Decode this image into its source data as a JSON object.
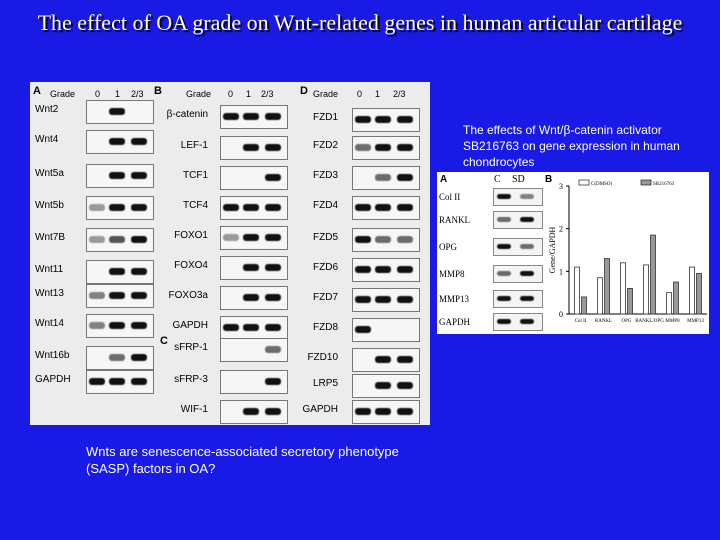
{
  "title": "The effect of OA grade on Wnt-related genes in human articular cartilage",
  "figure1": {
    "panel_A": {
      "letter": "A",
      "header": [
        "Grade",
        "0",
        "1",
        "2/3"
      ],
      "genes": [
        "Wnt2",
        "Wnt4",
        "Wnt5a",
        "Wnt5b",
        "Wnt7B",
        "Wnt11",
        "Wnt13",
        "Wnt14",
        "Wnt16b",
        "GAPDH"
      ]
    },
    "panel_B": {
      "letter": "B",
      "header": [
        "Grade",
        "0",
        "1",
        "2/3"
      ],
      "genes": [
        "β-catenin",
        "LEF-1",
        "TCF1",
        "TCF4",
        "FOXO1",
        "FOXO4",
        "FOXO3a",
        "GAPDH"
      ]
    },
    "panel_C": {
      "letter": "C",
      "genes": [
        "sFRP-1",
        "sFRP-3",
        "WIF-1"
      ]
    },
    "panel_D": {
      "letter": "D",
      "header": [
        "Grade",
        "0",
        "1",
        "2/3"
      ],
      "genes": [
        "FZD1",
        "FZD2",
        "FZD3",
        "FZD4",
        "FZD5",
        "FZD6",
        "FZD7",
        "FZD8",
        "FZD10",
        "LRP5",
        "GAPDH"
      ]
    }
  },
  "caption_right": "The effects of Wnt/β-catenin activator SB216763 on gene expression in human chondrocytes",
  "figure2": {
    "panel_A": {
      "letter": "A",
      "header": [
        "C",
        "SD"
      ],
      "genes": [
        "Col II",
        "RANKL",
        "OPG",
        "MMP8",
        "MMP13",
        "GAPDH"
      ]
    },
    "panel_B": {
      "letter": "B",
      "ylabel": "Gene/GAPDH",
      "legend": [
        "C(DMSO)",
        "SB216763"
      ],
      "ticks": [
        "0",
        "1",
        "2",
        "3"
      ]
    }
  },
  "chart_data": {
    "type": "bar",
    "categories": [
      "Col II",
      "RANKL",
      "OPG",
      "RANKL/OPG",
      "MMP8",
      "MMP13"
    ],
    "series": [
      {
        "name": "C(DMSO)",
        "values": [
          1.1,
          0.85,
          1.2,
          1.15,
          0.5,
          1.1
        ]
      },
      {
        "name": "SB216763",
        "values": [
          0.4,
          1.3,
          0.6,
          1.85,
          0.75,
          0.95
        ]
      }
    ],
    "ylabel": "Gene/GAPDH",
    "ylim": [
      0,
      3
    ]
  },
  "caption_bottom": "Wnts are senescence-associated secretory phenotype (SASP) factors in OA?"
}
